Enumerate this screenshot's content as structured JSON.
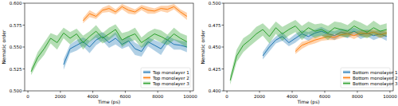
{
  "chart_data": [
    {
      "type": "line",
      "x_label": "Time (ps)",
      "y_label": "Nematic order",
      "xlim": [
        -200,
        10200
      ],
      "xticks": [
        0,
        2000,
        4000,
        6000,
        8000,
        10000
      ],
      "ylim": [
        0.5,
        0.6
      ],
      "yticks": [
        {
          "value": 0.5,
          "label": "0.500"
        },
        0.525,
        {
          "value": 0.55,
          "label": "0.550"
        },
        0.575,
        {
          "value": 0.6,
          "label": "0.600"
        }
      ],
      "grid": false,
      "legend": "lower right",
      "x": [
        200,
        600,
        1000,
        1400,
        1800,
        2200,
        2600,
        3000,
        3400,
        3800,
        4200,
        4600,
        5000,
        5400,
        5800,
        6200,
        6600,
        7000,
        7400,
        7800,
        8200,
        8600,
        9000,
        9400,
        9800
      ],
      "series": [
        {
          "name": "Top monolayer 1",
          "color": "#1f77b4",
          "values": [
            null,
            null,
            null,
            null,
            null,
            0.53,
            0.548,
            0.552,
            0.556,
            0.55,
            0.558,
            0.562,
            0.555,
            0.56,
            0.553,
            0.557,
            0.548,
            0.545,
            0.556,
            0.552,
            0.548,
            0.558,
            0.553,
            0.552,
            0.55
          ],
          "error": [
            null,
            null,
            null,
            null,
            null,
            0.006,
            0.005,
            0.006,
            0.005,
            0.007,
            0.006,
            0.005,
            0.006,
            0.007,
            0.005,
            0.006,
            0.007,
            0.006,
            0.005,
            0.006,
            0.007,
            0.005,
            0.006,
            0.005,
            0.006
          ]
        },
        {
          "name": "Top monolayer 2",
          "color": "#ff7f0e",
          "values": [
            null,
            null,
            null,
            null,
            null,
            null,
            null,
            null,
            0.58,
            0.588,
            0.585,
            0.592,
            0.594,
            0.59,
            0.596,
            0.592,
            0.59,
            0.595,
            0.592,
            0.591,
            0.594,
            0.593,
            0.596,
            0.59,
            0.585
          ],
          "error": [
            null,
            null,
            null,
            null,
            null,
            null,
            null,
            null,
            0.003,
            0.004,
            0.003,
            0.003,
            0.004,
            0.003,
            0.003,
            0.004,
            0.003,
            0.003,
            0.004,
            0.003,
            0.003,
            0.004,
            0.003,
            0.003,
            0.004
          ]
        },
        {
          "name": "Top monolayer 3",
          "color": "#2ca02c",
          "values": [
            0.522,
            0.538,
            0.548,
            0.56,
            0.555,
            0.566,
            0.56,
            0.565,
            0.555,
            0.562,
            0.568,
            0.56,
            0.565,
            0.57,
            0.558,
            0.562,
            0.565,
            0.555,
            0.56,
            0.565,
            0.562,
            0.558,
            0.565,
            0.56,
            0.556
          ],
          "error": [
            0.004,
            0.006,
            0.007,
            0.006,
            0.008,
            0.006,
            0.007,
            0.006,
            0.008,
            0.006,
            0.007,
            0.006,
            0.007,
            0.006,
            0.008,
            0.006,
            0.007,
            0.006,
            0.007,
            0.006,
            0.007,
            0.006,
            0.007,
            0.006,
            0.007
          ]
        }
      ]
    },
    {
      "type": "line",
      "x_label": "Time (ps)",
      "y_label": "Nematic order",
      "xlim": [
        -200,
        10200
      ],
      "xticks": [
        0,
        2000,
        4000,
        6000,
        8000,
        10000
      ],
      "ylim": [
        0.4,
        0.5
      ],
      "yticks": [
        {
          "value": 0.4,
          "label": "0.400"
        },
        0.425,
        {
          "value": 0.45,
          "label": "0.450"
        },
        0.475,
        {
          "value": 0.5,
          "label": "0.500"
        }
      ],
      "grid": false,
      "legend": "lower right",
      "x": [
        200,
        600,
        1000,
        1400,
        1800,
        2200,
        2600,
        3000,
        3400,
        3800,
        4200,
        4600,
        5000,
        5400,
        5800,
        6200,
        6600,
        7000,
        7400,
        7800,
        8200,
        8600,
        9000,
        9400,
        9800
      ],
      "series": [
        {
          "name": "Bottom monolayer 1",
          "color": "#1f77b4",
          "values": [
            null,
            null,
            null,
            null,
            null,
            0.44,
            0.45,
            0.458,
            0.462,
            0.455,
            0.46,
            0.465,
            0.462,
            0.466,
            0.468,
            0.465,
            0.463,
            0.467,
            0.465,
            0.468,
            0.464,
            0.466,
            0.463,
            0.465,
            0.462
          ],
          "error": [
            null,
            null,
            null,
            null,
            null,
            0.004,
            0.005,
            0.004,
            0.005,
            0.004,
            0.005,
            0.004,
            0.005,
            0.004,
            0.005,
            0.004,
            0.005,
            0.004,
            0.005,
            0.004,
            0.005,
            0.004,
            0.005,
            0.004,
            0.005
          ]
        },
        {
          "name": "Bottom monolayer 2",
          "color": "#ff7f0e",
          "values": [
            null,
            null,
            null,
            null,
            null,
            null,
            null,
            null,
            null,
            null,
            0.445,
            0.452,
            0.455,
            0.458,
            0.46,
            0.462,
            0.461,
            0.464,
            0.465,
            0.463,
            0.466,
            0.465,
            0.467,
            0.464,
            0.466
          ],
          "error": [
            null,
            null,
            null,
            null,
            null,
            null,
            null,
            null,
            null,
            null,
            0.003,
            0.004,
            0.003,
            0.004,
            0.003,
            0.004,
            0.003,
            0.004,
            0.003,
            0.004,
            0.003,
            0.004,
            0.003,
            0.004,
            0.003
          ]
        },
        {
          "name": "Bottom monolayer 3",
          "color": "#2ca02c",
          "values": [
            0.412,
            0.44,
            0.452,
            0.458,
            0.465,
            0.47,
            0.462,
            0.472,
            0.465,
            0.47,
            0.474,
            0.466,
            0.472,
            0.468,
            0.47,
            0.466,
            0.472,
            0.47,
            0.468,
            0.474,
            0.47,
            0.467,
            0.472,
            0.468,
            0.47
          ],
          "error": [
            0.005,
            0.007,
            0.008,
            0.007,
            0.008,
            0.007,
            0.008,
            0.007,
            0.008,
            0.007,
            0.007,
            0.008,
            0.007,
            0.008,
            0.007,
            0.008,
            0.007,
            0.008,
            0.007,
            0.007,
            0.008,
            0.007,
            0.008,
            0.007,
            0.007
          ]
        }
      ]
    }
  ]
}
